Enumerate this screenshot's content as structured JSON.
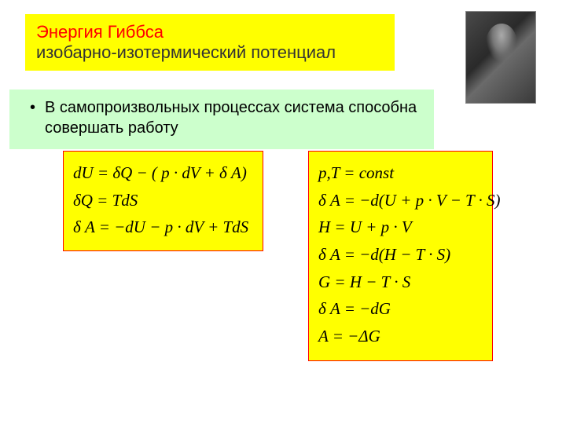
{
  "title": {
    "line1": "Энергия Гиббса",
    "line2": "изобарно-изотермический потенциал",
    "bg_color": "#ffff00",
    "line1_color": "#ff0000",
    "line2_color": "#333333",
    "fontsize": 22
  },
  "bullet": {
    "text": "В самопроизвольных процессах система способна совершать работу",
    "bg_color": "#ccffcc",
    "fontsize": 20
  },
  "equations_left": {
    "bg_color": "#ffff00",
    "border_color": "#ff0000",
    "fontsize": 21,
    "lines": [
      "dU = δQ − ( p · dV + δ A)",
      "δQ = TdS",
      "δ A = −dU − p · dV + TdS"
    ]
  },
  "equations_right": {
    "bg_color": "#ffff00",
    "border_color": "#ff0000",
    "fontsize": 21,
    "lines": [
      "p,T = const",
      "δ A = −d(U + p · V − T · S)",
      "H = U + p · V",
      "δ A = −d(H − T · S)",
      "G = H − T · S",
      "δ A = −dG",
      "A = −ΔG"
    ]
  },
  "portrait": {
    "alt": "gibbs-portrait"
  }
}
